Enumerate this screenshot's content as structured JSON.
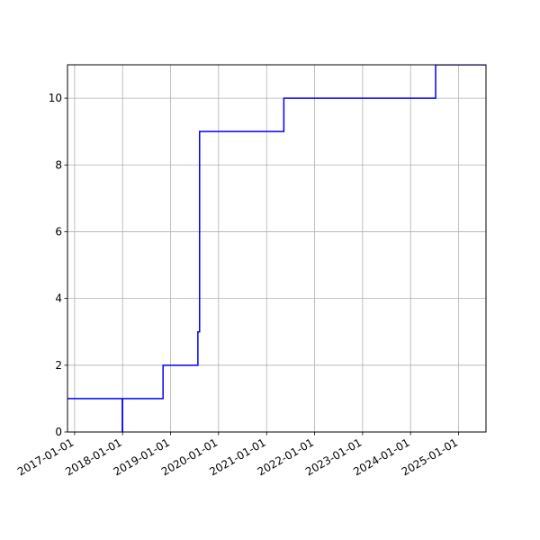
{
  "chart_data": {
    "type": "line",
    "title": "",
    "xlabel": "",
    "ylabel": "",
    "grid": true,
    "x_axis": {
      "scale": "date",
      "range": [
        "2016-11-08",
        "2025-07-28"
      ],
      "ticks": [
        "2017-01-01",
        "2018-01-01",
        "2019-01-01",
        "2020-01-01",
        "2021-01-01",
        "2022-01-01",
        "2023-01-01",
        "2024-01-01",
        "2025-01-01"
      ]
    },
    "y_axis": {
      "range": [
        0,
        11
      ],
      "ticks": [
        0,
        2,
        4,
        6,
        8,
        10
      ]
    },
    "series": [
      {
        "color": "#0000ff",
        "step": "post",
        "points": [
          {
            "x": "2016-11-08",
            "y": 1
          },
          {
            "x": "2017-12-30",
            "y": 0
          },
          {
            "x": "2018-01-01",
            "y": 1
          },
          {
            "x": "2018-11-05",
            "y": 2
          },
          {
            "x": "2019-07-28",
            "y": 3
          },
          {
            "x": "2019-08-10",
            "y": 9
          },
          {
            "x": "2021-05-12",
            "y": 10
          },
          {
            "x": "2024-07-10",
            "y": 11
          },
          {
            "x": "2025-07-28",
            "y": 11
          }
        ]
      }
    ]
  }
}
